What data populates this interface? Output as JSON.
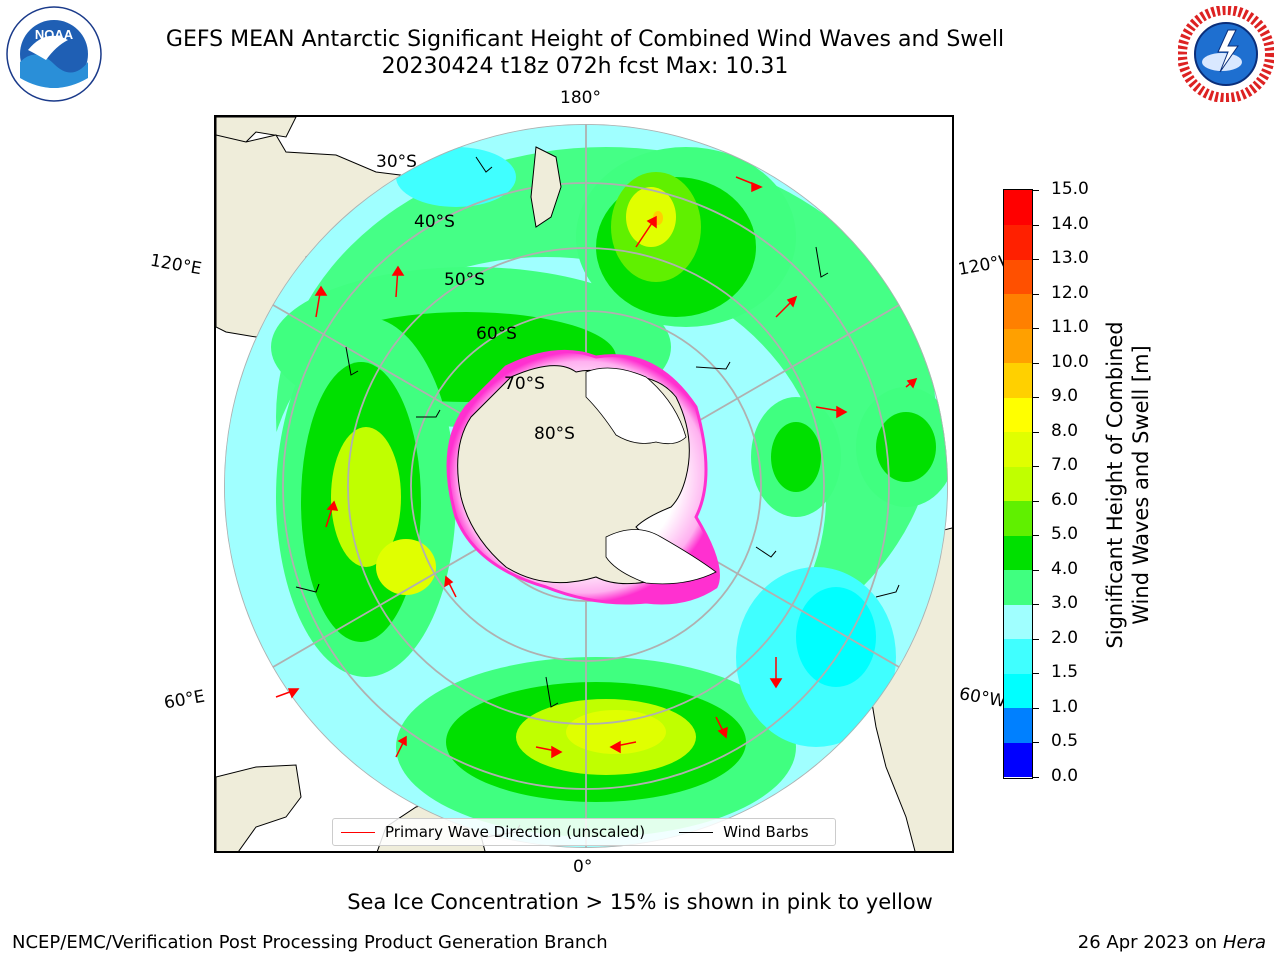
{
  "header": {
    "title_line1": "GEFS MEAN Antarctic Significant Height of Combined Wind Waves and Swell",
    "title_line2": "20230424 t18z 072h fcst   Max: 10.31"
  },
  "logos": {
    "left": "noaa-logo-icon",
    "left_text": "NOAA",
    "right": "national-weather-service-logo-icon"
  },
  "map": {
    "projection": "south-polar-stereographic",
    "longitude_labels": [
      "180°",
      "120°E",
      "120°W",
      "60°E",
      "60°W",
      "0°"
    ],
    "latitude_labels": [
      "30°S",
      "40°S",
      "50°S",
      "60°S",
      "70°S",
      "80°S"
    ]
  },
  "legend": {
    "wave_label": "Primary Wave Direction (unscaled)",
    "wind_label": "Wind Barbs",
    "wave_color": "#ff0000",
    "wind_color": "#000000"
  },
  "colorbar": {
    "label_line1": "Significant Height of Combined",
    "label_line2": "Wind Waves and Swell [m]",
    "ticks": [
      "0.0",
      "0.5",
      "1.0",
      "1.5",
      "2.0",
      "3.0",
      "4.0",
      "5.0",
      "6.0",
      "7.0",
      "8.0",
      "9.0",
      "10.0",
      "11.0",
      "12.0",
      "13.0",
      "14.0",
      "15.0"
    ],
    "colors": [
      "#0000ff",
      "#0080ff",
      "#00ffff",
      "#40ffff",
      "#a0ffff",
      "#40ff80",
      "#00e000",
      "#60f000",
      "#c0ff00",
      "#e0ff00",
      "#ffff00",
      "#ffd000",
      "#ffa000",
      "#ff8000",
      "#ff5000",
      "#ff2000",
      "#ff0000"
    ]
  },
  "notes": {
    "sea_ice": "Sea Ice Concentration > 15% is shown in pink to yellow"
  },
  "footer": {
    "left": "NCEP/EMC/Verification Post Processing Product Generation Branch",
    "right_date": "26 Apr 2023 on",
    "right_host": "Hera"
  }
}
